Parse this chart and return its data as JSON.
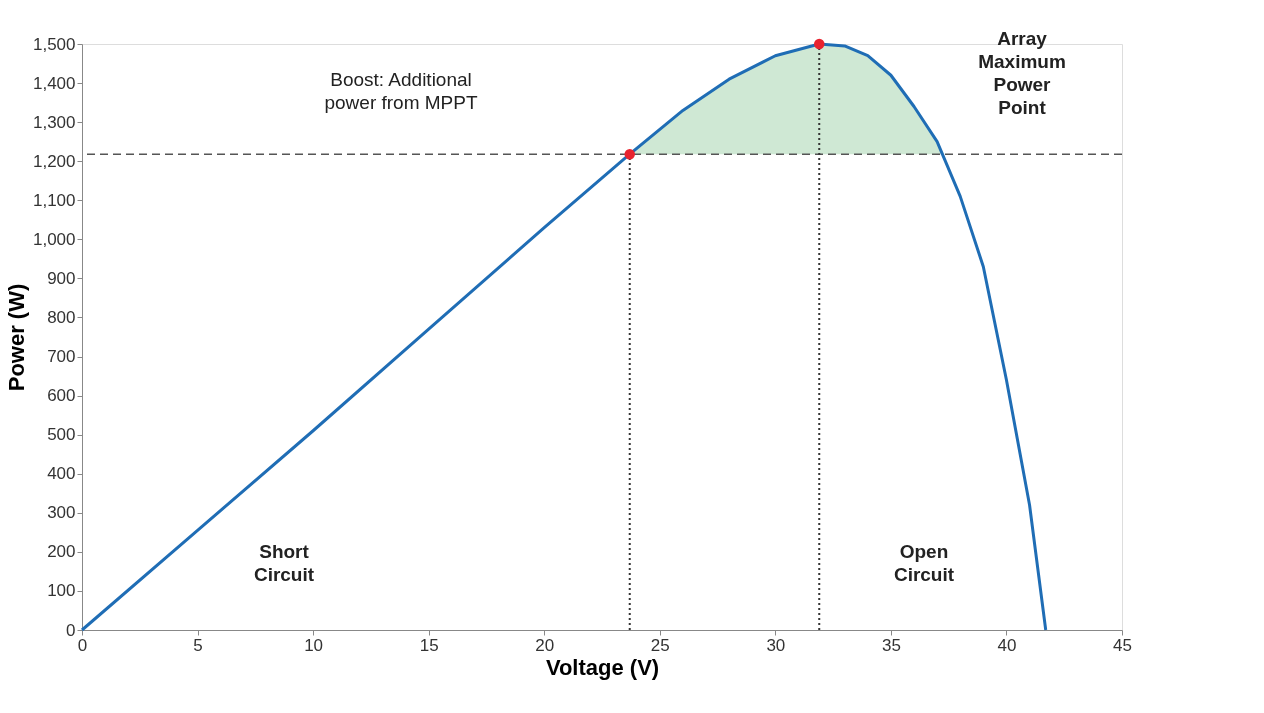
{
  "chart_data": {
    "type": "line",
    "xlabel": "Voltage (V)",
    "ylabel": "Power (W)",
    "xlim": [
      0,
      45
    ],
    "ylim": [
      0,
      1500
    ],
    "xticks": [
      0,
      5,
      10,
      15,
      20,
      25,
      30,
      35,
      40,
      45
    ],
    "yticks": [
      0,
      100,
      200,
      300,
      400,
      500,
      600,
      700,
      800,
      900,
      {
        "value": 1000,
        "label": "1,000"
      },
      {
        "value": 1100,
        "label": "1,100"
      },
      {
        "value": 1200,
        "label": "1,200"
      },
      {
        "value": 1300,
        "label": "1,300"
      },
      {
        "value": 1400,
        "label": "1,400"
      },
      {
        "value": 1500,
        "label": "1,500"
      }
    ],
    "grid": false,
    "series": [
      {
        "type": "area",
        "color": "#cfe8d4",
        "x": [
          23.7,
          26,
          28,
          30,
          31.9,
          33,
          34,
          35,
          36,
          37,
          37.3
        ],
        "values": [
          1218,
          1330,
          1410,
          1470,
          1500,
          1495,
          1470,
          1420,
          1340,
          1250,
          1218
        ]
      },
      {
        "color": "#1f6db5",
        "x": [
          0,
          5,
          10,
          15,
          20,
          23.7,
          26,
          28,
          30,
          31.9,
          33,
          34,
          35,
          36,
          37,
          38,
          39,
          40,
          41,
          41.7
        ],
        "values": [
          0,
          255,
          510,
          770,
          1030,
          1218,
          1330,
          1410,
          1470,
          1500,
          1495,
          1470,
          1420,
          1340,
          1250,
          1110,
          930,
          640,
          320,
          0
        ]
      },
      {
        "color": "#333333",
        "line_style": "dotted",
        "x": [
          23.7,
          23.7
        ],
        "values": [
          0,
          1218
        ]
      },
      {
        "color": "#333333",
        "line_style": "dotted",
        "x": [
          31.9,
          31.9
        ],
        "values": [
          0,
          1500
        ]
      },
      {
        "type": "scatter",
        "color": "#e8232f",
        "marker": "circle",
        "x": [
          23.7,
          31.9
        ],
        "values": [
          1218,
          1500
        ]
      }
    ],
    "ref_lines": [
      {
        "axis": "y",
        "value": 1218,
        "color": "#555555",
        "line_style": "dashed"
      }
    ],
    "annotations": [
      "Boost: Additional power from MPPT",
      "Array Maximum Power Point",
      "Short Circuit",
      "Open Circuit"
    ]
  }
}
